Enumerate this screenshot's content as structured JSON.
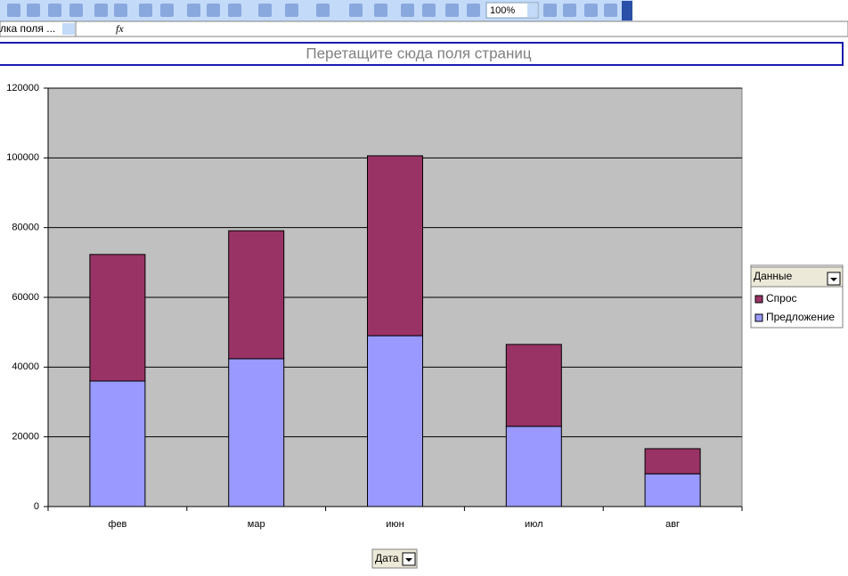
{
  "toolbar": {
    "zoom": "100%"
  },
  "formula_bar": {
    "name_box": "лка поля ...",
    "fx": "fx"
  },
  "page_field_area": "Перетащите сюда поля страниц",
  "chart_data": {
    "type": "stacked-bar",
    "categories": [
      "фев",
      "мар",
      "июн",
      "июл",
      "авг"
    ],
    "series": [
      {
        "name": "Спрос",
        "color": "#993366",
        "values": [
          36300,
          36700,
          51600,
          23500,
          7200
        ]
      },
      {
        "name": "Предложение",
        "color": "#9999ff",
        "values": [
          36000,
          42400,
          49000,
          23000,
          9400
        ]
      }
    ],
    "ylim": [
      0,
      120000
    ],
    "yticks": [
      0,
      20000,
      40000,
      60000,
      80000,
      100000,
      120000
    ],
    "grid": true,
    "plot_background": "#c0c0c0",
    "legend_title": "Данные",
    "category_field": "Дата"
  }
}
